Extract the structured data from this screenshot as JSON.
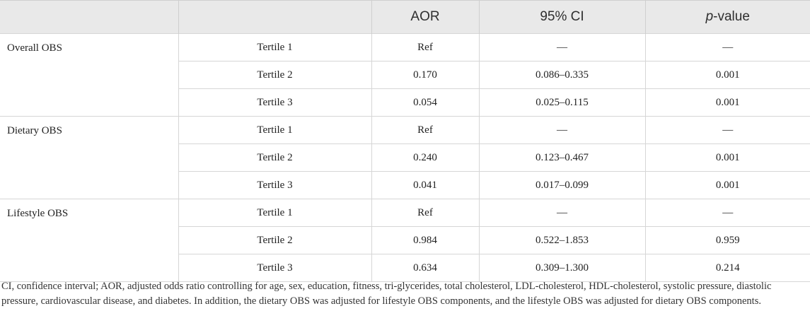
{
  "table": {
    "headers": {
      "col0": "",
      "col1": "",
      "aor": "AOR",
      "ci": "95% CI",
      "p_italic": "p",
      "p_rest": "-value"
    },
    "groups": [
      {
        "name": "Overall OBS",
        "rows": [
          {
            "tertile": "Tertile 1",
            "aor": "Ref",
            "ci": "—",
            "p": "—"
          },
          {
            "tertile": "Tertile 2",
            "aor": "0.170",
            "ci": "0.086–0.335",
            "p": "0.001"
          },
          {
            "tertile": "Tertile 3",
            "aor": "0.054",
            "ci": "0.025–0.115",
            "p": "0.001"
          }
        ]
      },
      {
        "name": "Dietary OBS",
        "rows": [
          {
            "tertile": "Tertile 1",
            "aor": "Ref",
            "ci": "—",
            "p": "—"
          },
          {
            "tertile": "Tertile 2",
            "aor": "0.240",
            "ci": "0.123–0.467",
            "p": "0.001"
          },
          {
            "tertile": "Tertile 3",
            "aor": "0.041",
            "ci": "0.017–0.099",
            "p": "0.001"
          }
        ]
      },
      {
        "name": "Lifestyle OBS",
        "rows": [
          {
            "tertile": "Tertile 1",
            "aor": "Ref",
            "ci": "—",
            "p": "—"
          },
          {
            "tertile": "Tertile 2",
            "aor": "0.984",
            "ci": "0.522–1.853",
            "p": "0.959"
          },
          {
            "tertile": "Tertile 3",
            "aor": "0.634",
            "ci": "0.309–1.300",
            "p": "0.214"
          }
        ]
      }
    ]
  },
  "footnote": "CI, confidence interval; AOR, adjusted odds ratio controlling for age, sex, education, fitness, tri-glycerides, total cholesterol, LDL-cholesterol, HDL-cholesterol, systolic pressure, diastolic pressure, cardiovascular disease, and diabetes. In addition, the dietary OBS was adjusted for lifestyle OBS components, and the lifestyle OBS was adjusted for dietary OBS components."
}
